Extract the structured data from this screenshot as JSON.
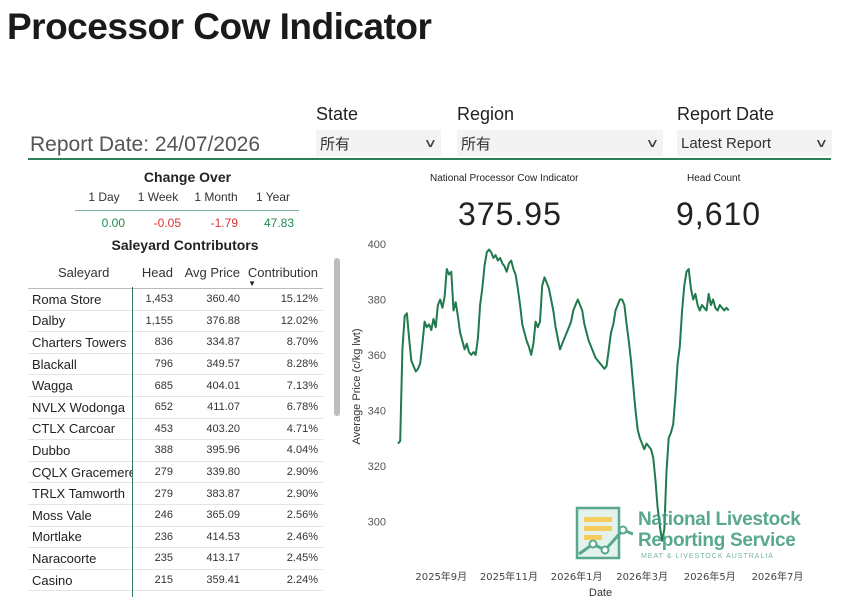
{
  "page_title": "Processor Cow Indicator",
  "report_date_label": "Report Date: 24/07/2026",
  "filters": {
    "state": {
      "label": "State",
      "value": "所有"
    },
    "region": {
      "label": "Region",
      "value": "所有"
    },
    "report_date": {
      "label": "Report Date",
      "value": "Latest Report"
    }
  },
  "change_over": {
    "title": "Change Over",
    "periods": [
      {
        "label": "1 Day",
        "value": "0.00",
        "trend": "neutral"
      },
      {
        "label": "1 Week",
        "value": "-0.05",
        "trend": "down"
      },
      {
        "label": "1 Month",
        "value": "-1.79",
        "trend": "down"
      },
      {
        "label": "1 Year",
        "value": "47.83",
        "trend": "up"
      }
    ]
  },
  "saleyard": {
    "title": "Saleyard Contributors",
    "columns": [
      "Saleyard",
      "Head",
      "Avg Price",
      "Contribution"
    ],
    "rows": [
      [
        "Roma Store",
        "1,453",
        "360.40",
        "15.12%"
      ],
      [
        "Dalby",
        "1,155",
        "376.88",
        "12.02%"
      ],
      [
        "Charters Towers",
        "836",
        "334.87",
        "8.70%"
      ],
      [
        "Blackall",
        "796",
        "349.57",
        "8.28%"
      ],
      [
        "Wagga",
        "685",
        "404.01",
        "7.13%"
      ],
      [
        "NVLX Wodonga",
        "652",
        "411.07",
        "6.78%"
      ],
      [
        "CTLX Carcoar",
        "453",
        "403.20",
        "4.71%"
      ],
      [
        "Dubbo",
        "388",
        "395.96",
        "4.04%"
      ],
      [
        "CQLX Gracemere",
        "279",
        "339.80",
        "2.90%"
      ],
      [
        "TRLX Tamworth",
        "279",
        "383.87",
        "2.90%"
      ],
      [
        "Moss Vale",
        "246",
        "365.09",
        "2.56%"
      ],
      [
        "Mortlake",
        "236",
        "414.53",
        "2.46%"
      ],
      [
        "Naracoorte",
        "235",
        "413.17",
        "2.45%"
      ],
      [
        "Casino",
        "215",
        "359.41",
        "2.24%"
      ]
    ]
  },
  "kpis": {
    "indicator": {
      "label": "National Processor Cow Indicator",
      "value": "375.95"
    },
    "head_count": {
      "label": "Head Count",
      "value": "9,610"
    }
  },
  "colors": {
    "accent": "#2e7d5b",
    "line": "#1f7a4d",
    "positive": "#1f8a4c",
    "negative": "#d33333"
  },
  "logo": {
    "line1": "National Livestock",
    "line2": "Reporting Service",
    "line3": "MEAT & LIVESTOCK AUSTRALIA"
  },
  "chart_data": {
    "type": "line",
    "xlabel": "Date",
    "ylabel": "Average Price (c/kg lwt)",
    "ylim": [
      290,
      400
    ],
    "y_ticks": [
      300,
      320,
      340,
      360,
      380,
      400
    ],
    "x_ticks": [
      "2025年9月",
      "2025年11月",
      "2026年1月",
      "2026年3月",
      "2026年5月",
      "2026年7月"
    ],
    "x_range": [
      "2025-07-24",
      "2026-07-24"
    ],
    "series": [
      {
        "values": [
          [
            "2025-07-24",
            328
          ],
          [
            "2025-07-26",
            329
          ],
          [
            "2025-07-28",
            362
          ],
          [
            "2025-07-30",
            374
          ],
          [
            "2025-08-01",
            375
          ],
          [
            "2025-08-03",
            366
          ],
          [
            "2025-08-05",
            358
          ],
          [
            "2025-08-07",
            356
          ],
          [
            "2025-08-09",
            354
          ],
          [
            "2025-08-11",
            355
          ],
          [
            "2025-08-13",
            357
          ],
          [
            "2025-08-15",
            364
          ],
          [
            "2025-08-17",
            372
          ],
          [
            "2025-08-19",
            370
          ],
          [
            "2025-08-21",
            371
          ],
          [
            "2025-08-23",
            369
          ],
          [
            "2025-08-25",
            373
          ],
          [
            "2025-08-27",
            370
          ],
          [
            "2025-08-29",
            378
          ],
          [
            "2025-08-31",
            380
          ],
          [
            "2025-09-02",
            377
          ],
          [
            "2025-09-04",
            381
          ],
          [
            "2025-09-06",
            391
          ],
          [
            "2025-09-08",
            389
          ],
          [
            "2025-09-10",
            390
          ],
          [
            "2025-09-12",
            376
          ],
          [
            "2025-09-14",
            379
          ],
          [
            "2025-09-16",
            374
          ],
          [
            "2025-09-18",
            368
          ],
          [
            "2025-09-20",
            365
          ],
          [
            "2025-09-22",
            362
          ],
          [
            "2025-09-24",
            364
          ],
          [
            "2025-09-26",
            361
          ],
          [
            "2025-09-28",
            360
          ],
          [
            "2025-09-30",
            361
          ],
          [
            "2025-10-02",
            360
          ],
          [
            "2025-10-04",
            366
          ],
          [
            "2025-10-06",
            378
          ],
          [
            "2025-10-08",
            384
          ],
          [
            "2025-10-10",
            392
          ],
          [
            "2025-10-12",
            397
          ],
          [
            "2025-10-14",
            398
          ],
          [
            "2025-10-16",
            397
          ],
          [
            "2025-10-18",
            395
          ],
          [
            "2025-10-20",
            396
          ],
          [
            "2025-10-22",
            394
          ],
          [
            "2025-10-24",
            395
          ],
          [
            "2025-10-26",
            393
          ],
          [
            "2025-10-28",
            392
          ],
          [
            "2025-10-30",
            390
          ],
          [
            "2025-11-01",
            393
          ],
          [
            "2025-11-03",
            394
          ],
          [
            "2025-11-05",
            391
          ],
          [
            "2025-11-07",
            389
          ],
          [
            "2025-11-09",
            384
          ],
          [
            "2025-11-11",
            378
          ],
          [
            "2025-11-13",
            371
          ],
          [
            "2025-11-15",
            368
          ],
          [
            "2025-11-17",
            365
          ],
          [
            "2025-11-19",
            363
          ],
          [
            "2025-11-21",
            360
          ],
          [
            "2025-11-23",
            364
          ],
          [
            "2025-11-25",
            372
          ],
          [
            "2025-11-27",
            370
          ],
          [
            "2025-11-29",
            372
          ],
          [
            "2025-12-01",
            385
          ],
          [
            "2025-12-03",
            388
          ],
          [
            "2025-12-05",
            386
          ],
          [
            "2025-12-07",
            384
          ],
          [
            "2025-12-09",
            380
          ],
          [
            "2025-12-11",
            376
          ],
          [
            "2025-12-13",
            370
          ],
          [
            "2025-12-15",
            366
          ],
          [
            "2025-12-17",
            362
          ],
          [
            "2025-12-19",
            364
          ],
          [
            "2025-12-21",
            366
          ],
          [
            "2025-12-23",
            368
          ],
          [
            "2025-12-25",
            370
          ],
          [
            "2025-12-27",
            372
          ],
          [
            "2025-12-29",
            376
          ],
          [
            "2025-12-31",
            378
          ],
          [
            "2026-01-02",
            380
          ],
          [
            "2026-01-04",
            378
          ],
          [
            "2026-01-06",
            376
          ],
          [
            "2026-01-08",
            371
          ],
          [
            "2026-01-10",
            368
          ],
          [
            "2026-01-12",
            365
          ],
          [
            "2026-01-14",
            363
          ],
          [
            "2026-01-16",
            361
          ],
          [
            "2026-01-18",
            359
          ],
          [
            "2026-01-20",
            358
          ],
          [
            "2026-01-22",
            357
          ],
          [
            "2026-01-24",
            356
          ],
          [
            "2026-01-26",
            355
          ],
          [
            "2026-01-28",
            356
          ],
          [
            "2026-01-30",
            362
          ],
          [
            "2026-02-01",
            368
          ],
          [
            "2026-02-03",
            371
          ],
          [
            "2026-02-05",
            376
          ],
          [
            "2026-02-07",
            378
          ],
          [
            "2026-02-09",
            380
          ],
          [
            "2026-02-11",
            380
          ],
          [
            "2026-02-13",
            378
          ],
          [
            "2026-02-15",
            371
          ],
          [
            "2026-02-17",
            365
          ],
          [
            "2026-02-19",
            358
          ],
          [
            "2026-02-21",
            349
          ],
          [
            "2026-02-23",
            340
          ],
          [
            "2026-02-25",
            333
          ],
          [
            "2026-02-27",
            330
          ],
          [
            "2026-03-01",
            328
          ],
          [
            "2026-03-03",
            326
          ],
          [
            "2026-03-05",
            328
          ],
          [
            "2026-03-07",
            327
          ],
          [
            "2026-03-09",
            326
          ],
          [
            "2026-03-11",
            323
          ],
          [
            "2026-03-13",
            315
          ],
          [
            "2026-03-15",
            305
          ],
          [
            "2026-03-17",
            298
          ],
          [
            "2026-03-19",
            293
          ],
          [
            "2026-03-21",
            297
          ],
          [
            "2026-03-23",
            318
          ],
          [
            "2026-03-25",
            330
          ],
          [
            "2026-03-27",
            332
          ],
          [
            "2026-03-29",
            335
          ],
          [
            "2026-03-31",
            345
          ],
          [
            "2026-04-02",
            357
          ],
          [
            "2026-04-04",
            363
          ],
          [
            "2026-04-06",
            376
          ],
          [
            "2026-04-08",
            385
          ],
          [
            "2026-04-10",
            390
          ],
          [
            "2026-04-12",
            391
          ],
          [
            "2026-04-14",
            384
          ],
          [
            "2026-04-16",
            380
          ],
          [
            "2026-04-18",
            382
          ],
          [
            "2026-04-20",
            378
          ],
          [
            "2026-04-22",
            376
          ],
          [
            "2026-04-24",
            378
          ],
          [
            "2026-04-26",
            377
          ],
          [
            "2026-04-28",
            376
          ],
          [
            "2026-04-30",
            382
          ],
          [
            "2026-05-02",
            378
          ],
          [
            "2026-05-04",
            380
          ],
          [
            "2026-05-06",
            377
          ],
          [
            "2026-05-08",
            376
          ],
          [
            "2026-05-10",
            378
          ],
          [
            "2026-05-12",
            377
          ],
          [
            "2026-05-14",
            376
          ],
          [
            "2026-05-16",
            377
          ],
          [
            "2026-05-18",
            376
          ]
        ]
      }
    ]
  }
}
